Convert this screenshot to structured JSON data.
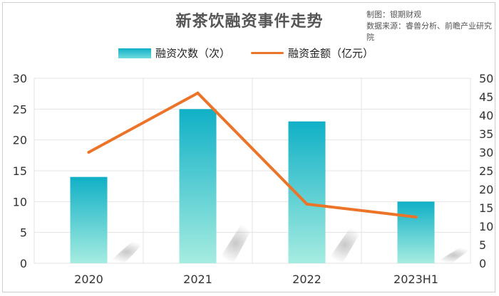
{
  "header": {
    "title": "新茶饮融资事件走势",
    "credit_maker": "制图：银期财观",
    "credit_source": "数据来源：睿兽分析、前瞻产业研究院"
  },
  "chart_data": {
    "type": "bar",
    "title": "新茶饮融资事件走势",
    "categories": [
      "2020",
      "2021",
      "2022",
      "2023H1"
    ],
    "series": [
      {
        "name": "融资次数（次）",
        "type": "bar",
        "axis": "left",
        "values": [
          14,
          25,
          23,
          10
        ],
        "color_top": "#10b0c6",
        "color_bottom": "#a6ece0"
      },
      {
        "name": "融资金额（亿元）",
        "type": "line",
        "axis": "right",
        "values": [
          30,
          46,
          16,
          12.5
        ],
        "color": "#ec7429"
      }
    ],
    "y_left": {
      "min": 0,
      "max": 30,
      "ticks": [
        0,
        5,
        10,
        15,
        20,
        25,
        30
      ]
    },
    "y_right": {
      "min": 0,
      "max": 50,
      "ticks": [
        0,
        5,
        10,
        15,
        20,
        25,
        30,
        35,
        40,
        45,
        50
      ]
    },
    "grid": true,
    "legend_position": "top-center"
  }
}
